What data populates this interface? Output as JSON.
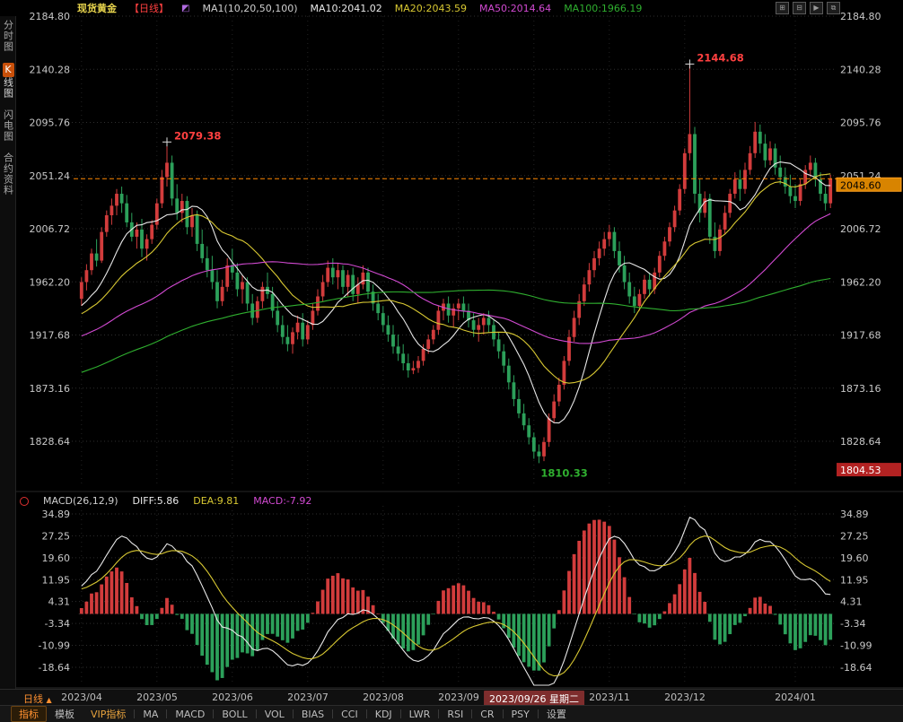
{
  "header": {
    "symbol": "现货黄金",
    "period_tag": "【日线】",
    "ma_group_label": "MA1(10,20,50,100)",
    "ma_values": [
      {
        "label": "MA10:2041.02",
        "color": "#e8e8e8"
      },
      {
        "label": "MA20:2043.59",
        "color": "#d8c832"
      },
      {
        "label": "MA50:2014.64",
        "color": "#d24ad2"
      },
      {
        "label": "MA100:1966.19",
        "color": "#2faf2f"
      }
    ],
    "window_icons": [
      {
        "name": "new-window-icon",
        "glyph": "⊞"
      },
      {
        "name": "compress-icon",
        "glyph": "⊟"
      },
      {
        "name": "play-icon",
        "glyph": "▶"
      },
      {
        "name": "maximize-icon",
        "glyph": "⧉"
      }
    ]
  },
  "sidebar": {
    "tabs": [
      {
        "label": "分时图",
        "active": false
      },
      {
        "label": "K线图",
        "active": true
      },
      {
        "label": "闪电图",
        "active": false
      },
      {
        "label": "合约资料",
        "active": false
      }
    ]
  },
  "macd_header": {
    "title": "MACD(26,12,9)",
    "diff": "DIFF:5.86",
    "dea": "DEA:9.81",
    "macd": "MACD:-7.92"
  },
  "date_bar": {
    "timeframe": "日线",
    "arrow": "▲"
  },
  "toolbar": {
    "tab_indicator": "指标",
    "tab_template": "模板",
    "tab_vip": "VIP指标",
    "indicators": [
      "MA",
      "MACD",
      "BOLL",
      "VOL",
      "BIAS",
      "CCI",
      "KDJ",
      "LWR",
      "RSI",
      "CR",
      "PSY"
    ],
    "settings": "设置"
  },
  "chart_data": {
    "type": "candlestick+macd",
    "title": "现货黄金 日线",
    "y_ticks_main": [
      2184.8,
      2140.28,
      2095.76,
      2051.24,
      2006.72,
      1962.2,
      1917.68,
      1873.16,
      1828.64
    ],
    "y_ticks_macd": [
      34.89,
      27.25,
      19.6,
      11.95,
      4.31,
      -3.34,
      -10.99,
      -18.64
    ],
    "x_ticks": [
      {
        "label": "2023/04",
        "index": 0
      },
      {
        "label": "2023/05",
        "index": 15
      },
      {
        "label": "2023/06",
        "index": 30
      },
      {
        "label": "2023/07",
        "index": 45
      },
      {
        "label": "2023/08",
        "index": 60
      },
      {
        "label": "2023/09",
        "index": 75
      },
      {
        "label": "2023/09/26 星期二",
        "index": 90,
        "highlight": true
      },
      {
        "label": "2023/11",
        "index": 105
      },
      {
        "label": "2023/12",
        "index": 120
      },
      {
        "label": "2024/01",
        "index": 142
      }
    ],
    "last_price": "2048.60",
    "last_price_value": 2048.6,
    "low_badge": "1804.53",
    "low_badge_value": 1804.53,
    "ma_periods": [
      10,
      20,
      50,
      100
    ],
    "macd_params": [
      26,
      12,
      9
    ],
    "prehistory": {
      "start": 1825,
      "end": 1945,
      "bars": 100
    },
    "annotations": [
      {
        "text": "2079.38",
        "index": 17,
        "price": 2079.38,
        "type": "high",
        "color": "#ff4040",
        "cross": true
      },
      {
        "text": "2144.68",
        "index": 121,
        "price": 2144.68,
        "type": "high",
        "color": "#ff4040",
        "cross": true
      },
      {
        "text": "1810.33",
        "index": 91,
        "price": 1810.33,
        "type": "low",
        "color": "#2faf2f",
        "cross": false
      }
    ],
    "colors": {
      "up": "#d23c3c",
      "down": "#2ca05a",
      "ma10": "#e8e8e8",
      "ma20": "#d8c832",
      "ma50": "#d24ad2",
      "ma100": "#2faf2f",
      "diff": "#e8e8e8",
      "dea": "#d8c832",
      "grid": "#2e2e2e",
      "vgrid": "#222222",
      "axis_text": "#c8c8c8",
      "last_line": "#ff8800",
      "last_badge_bg": "#d88400",
      "last_badge_text": "#000000",
      "low_badge_bg": "#b22222",
      "low_badge_text": "#ffffff"
    },
    "candles": [
      [
        1948,
        1966,
        1942,
        1962
      ],
      [
        1962,
        1977,
        1955,
        1972
      ],
      [
        1972,
        1990,
        1968,
        1986
      ],
      [
        1986,
        1998,
        1975,
        1980
      ],
      [
        1980,
        2008,
        1978,
        2004
      ],
      [
        2004,
        2022,
        2000,
        2018
      ],
      [
        2018,
        2032,
        2010,
        2026
      ],
      [
        2026,
        2040,
        2018,
        2036
      ],
      [
        2036,
        2042,
        2020,
        2028
      ],
      [
        2028,
        2035,
        2008,
        2012
      ],
      [
        2012,
        2020,
        1996,
        2000
      ],
      [
        2000,
        2012,
        1990,
        2006
      ],
      [
        2006,
        2015,
        1983,
        1990
      ],
      [
        1990,
        2002,
        1980,
        1998
      ],
      [
        1998,
        2014,
        1994,
        2010
      ],
      [
        2010,
        2032,
        2006,
        2028
      ],
      [
        2028,
        2056,
        2024,
        2050
      ],
      [
        2050,
        2079.38,
        2042,
        2062
      ],
      [
        2062,
        2068,
        2026,
        2032
      ],
      [
        2032,
        2044,
        2014,
        2020
      ],
      [
        2020,
        2036,
        2012,
        2030
      ],
      [
        2030,
        2034,
        2002,
        2008
      ],
      [
        2008,
        2024,
        2000,
        2018
      ],
      [
        2018,
        2022,
        1988,
        1994
      ],
      [
        1994,
        2006,
        1978,
        1982
      ],
      [
        1982,
        1992,
        1966,
        1972
      ],
      [
        1972,
        1984,
        1956,
        1962
      ],
      [
        1962,
        1972,
        1940,
        1946
      ],
      [
        1946,
        1964,
        1942,
        1958
      ],
      [
        1958,
        1982,
        1954,
        1976
      ],
      [
        1976,
        1990,
        1964,
        1970
      ],
      [
        1970,
        1978,
        1950,
        1956
      ],
      [
        1956,
        1968,
        1944,
        1962
      ],
      [
        1962,
        1966,
        1938,
        1944
      ],
      [
        1944,
        1952,
        1926,
        1932
      ],
      [
        1932,
        1950,
        1928,
        1946
      ],
      [
        1946,
        1962,
        1940,
        1958
      ],
      [
        1958,
        1970,
        1948,
        1952
      ],
      [
        1952,
        1958,
        1932,
        1938
      ],
      [
        1938,
        1946,
        1920,
        1926
      ],
      [
        1926,
        1934,
        1910,
        1916
      ],
      [
        1916,
        1926,
        1904,
        1910
      ],
      [
        1910,
        1924,
        1902,
        1920
      ],
      [
        1920,
        1934,
        1914,
        1928
      ],
      [
        1928,
        1936,
        1908,
        1914
      ],
      [
        1914,
        1930,
        1910,
        1926
      ],
      [
        1926,
        1944,
        1922,
        1938
      ],
      [
        1938,
        1956,
        1934,
        1950
      ],
      [
        1950,
        1968,
        1946,
        1962
      ],
      [
        1962,
        1980,
        1958,
        1974
      ],
      [
        1974,
        1982,
        1960,
        1966
      ],
      [
        1966,
        1978,
        1956,
        1972
      ],
      [
        1972,
        1976,
        1952,
        1958
      ],
      [
        1958,
        1972,
        1950,
        1968
      ],
      [
        1968,
        1974,
        1946,
        1952
      ],
      [
        1952,
        1966,
        1944,
        1960
      ],
      [
        1960,
        1976,
        1956,
        1970
      ],
      [
        1970,
        1974,
        1948,
        1954
      ],
      [
        1954,
        1960,
        1938,
        1944
      ],
      [
        1944,
        1952,
        1930,
        1936
      ],
      [
        1936,
        1942,
        1920,
        1926
      ],
      [
        1926,
        1934,
        1912,
        1918
      ],
      [
        1918,
        1926,
        1902,
        1908
      ],
      [
        1908,
        1918,
        1896,
        1902
      ],
      [
        1902,
        1910,
        1888,
        1894
      ],
      [
        1894,
        1902,
        1882,
        1888
      ],
      [
        1888,
        1896,
        1884.9,
        1890
      ],
      [
        1890,
        1900,
        1886,
        1896
      ],
      [
        1896,
        1910,
        1892,
        1906
      ],
      [
        1906,
        1918,
        1902,
        1914
      ],
      [
        1914,
        1926,
        1910,
        1922
      ],
      [
        1922,
        1942,
        1918,
        1938
      ],
      [
        1938,
        1948,
        1930,
        1944
      ],
      [
        1944,
        1950,
        1928,
        1934
      ],
      [
        1934,
        1944,
        1924,
        1940
      ],
      [
        1940,
        1948,
        1930,
        1944
      ],
      [
        1944,
        1950,
        1932,
        1938
      ],
      [
        1938,
        1944,
        1924,
        1930
      ],
      [
        1930,
        1936,
        1916,
        1922
      ],
      [
        1922,
        1932,
        1912,
        1926
      ],
      [
        1926,
        1936,
        1918,
        1932
      ],
      [
        1932,
        1938,
        1920,
        1926
      ],
      [
        1926,
        1930,
        1908,
        1914
      ],
      [
        1914,
        1920,
        1898,
        1904
      ],
      [
        1904,
        1910,
        1886,
        1892
      ],
      [
        1892,
        1898,
        1872,
        1878
      ],
      [
        1878,
        1884,
        1858,
        1864
      ],
      [
        1864,
        1872,
        1848,
        1852
      ],
      [
        1852,
        1860,
        1838,
        1842
      ],
      [
        1842,
        1848,
        1826,
        1832
      ],
      [
        1832,
        1836,
        1814,
        1820
      ],
      [
        1820,
        1826,
        1810.33,
        1816
      ],
      [
        1816,
        1832,
        1812,
        1828
      ],
      [
        1828,
        1852,
        1824,
        1848
      ],
      [
        1848,
        1868,
        1844,
        1862
      ],
      [
        1862,
        1882,
        1858,
        1876
      ],
      [
        1876,
        1900,
        1872,
        1896
      ],
      [
        1896,
        1922,
        1892,
        1916
      ],
      [
        1916,
        1938,
        1912,
        1932
      ],
      [
        1932,
        1952,
        1926,
        1946
      ],
      [
        1946,
        1966,
        1942,
        1960
      ],
      [
        1960,
        1978,
        1954,
        1972
      ],
      [
        1972,
        1988,
        1966,
        1982
      ],
      [
        1982,
        1996,
        1976,
        1990
      ],
      [
        1990,
        2004,
        1984,
        1998
      ],
      [
        1998,
        2010,
        1992,
        2004
      ],
      [
        2004,
        2008,
        1982,
        1988
      ],
      [
        1988,
        1996,
        1970,
        1976
      ],
      [
        1976,
        1984,
        1956,
        1962
      ],
      [
        1962,
        1970,
        1944,
        1950
      ],
      [
        1950,
        1958,
        1936,
        1942
      ],
      [
        1942,
        1956,
        1938,
        1952
      ],
      [
        1952,
        1968,
        1948,
        1964
      ],
      [
        1964,
        1970,
        1950,
        1956
      ],
      [
        1956,
        1974,
        1952,
        1970
      ],
      [
        1970,
        1988,
        1966,
        1984
      ],
      [
        1984,
        2000,
        1980,
        1996
      ],
      [
        1996,
        2012,
        1992,
        2008
      ],
      [
        2008,
        2026,
        2004,
        2022
      ],
      [
        2022,
        2044,
        2018,
        2040
      ],
      [
        2040,
        2074,
        2036,
        2070
      ],
      [
        2070,
        2144.68,
        2064,
        2086
      ],
      [
        2086,
        2092,
        2028,
        2036
      ],
      [
        2036,
        2048,
        2012,
        2020
      ],
      [
        2020,
        2038,
        2016,
        2032
      ],
      [
        2032,
        2036,
        1994,
        2000
      ],
      [
        2000,
        2012,
        1982,
        1988
      ],
      [
        1988,
        2010,
        1984,
        2006
      ],
      [
        2006,
        2026,
        2002,
        2020
      ],
      [
        2020,
        2040,
        2016,
        2036
      ],
      [
        2036,
        2054,
        2032,
        2048
      ],
      [
        2048,
        2056,
        2030,
        2040
      ],
      [
        2040,
        2062,
        2036,
        2056
      ],
      [
        2056,
        2076,
        2052,
        2070
      ],
      [
        2070,
        2096.2,
        2066,
        2088
      ],
      [
        2088,
        2094,
        2070,
        2078
      ],
      [
        2078,
        2086,
        2058,
        2064
      ],
      [
        2064,
        2080,
        2060,
        2074
      ],
      [
        2074,
        2078,
        2052,
        2058
      ],
      [
        2058,
        2068,
        2044,
        2050
      ],
      [
        2050,
        2058,
        2036,
        2042
      ],
      [
        2042,
        2052,
        2028,
        2034
      ],
      [
        2034,
        2044,
        2024,
        2030
      ],
      [
        2030,
        2048,
        2026,
        2044
      ],
      [
        2044,
        2060,
        2040,
        2056
      ],
      [
        2056,
        2068,
        2050,
        2062
      ],
      [
        2062,
        2066,
        2042,
        2048
      ],
      [
        2048,
        2054,
        2030,
        2036
      ],
      [
        2036,
        2042,
        2022,
        2028
      ],
      [
        2028,
        2052,
        2024,
        2048.6
      ]
    ]
  }
}
